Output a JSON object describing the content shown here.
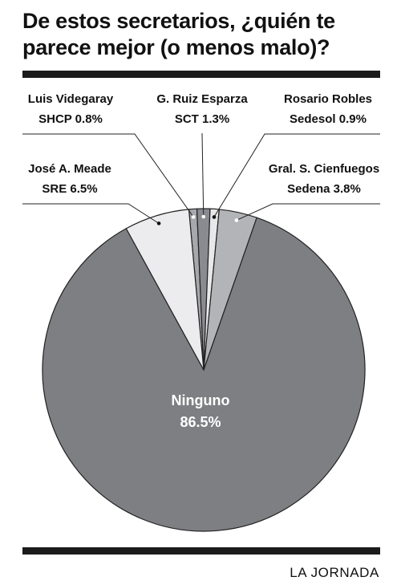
{
  "title": "De estos secretarios, ¿quién te parece mejor (o menos malo)?",
  "credit": "LA JORNADA",
  "chart_data": {
    "type": "pie",
    "title": "De estos secretarios, ¿quién te parece mejor (o menos malo)?",
    "slices": [
      {
        "name": "Luis Videgaray",
        "line2": "SHCP",
        "value": 0.8,
        "value_label": "0.8%",
        "color": "#a7a8ad"
      },
      {
        "name": "G. Ruiz Esparza",
        "line2": "SCT",
        "value": 1.3,
        "value_label": "1.3%",
        "color": "#8a8b90"
      },
      {
        "name": "Rosario Robles",
        "line2": "Sedesol",
        "value": 0.9,
        "value_label": "0.9%",
        "color": "#e8e8ea"
      },
      {
        "name": "Gral. S. Cienfuegos",
        "line2": "Sedena",
        "value": 3.8,
        "value_label": "3.8%",
        "color": "#b3b4b8"
      },
      {
        "name": "Ninguno",
        "line2": "",
        "value": 86.5,
        "value_label": "86.5%",
        "color": "#7e7f83"
      },
      {
        "name": "José A. Meade",
        "line2": "SRE",
        "value": 6.5,
        "value_label": "6.5%",
        "color": "#ececee"
      }
    ]
  }
}
